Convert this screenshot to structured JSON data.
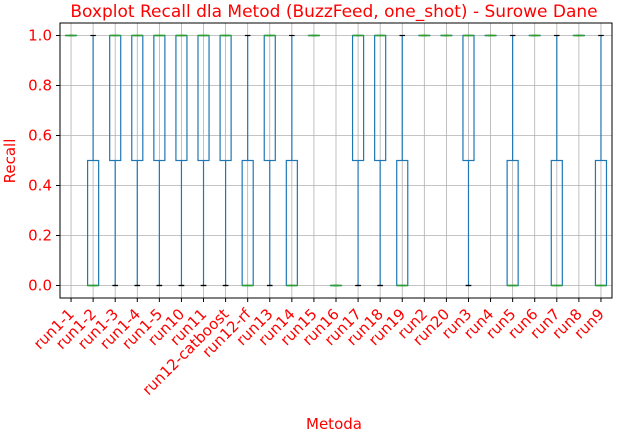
{
  "chart_data": {
    "type": "boxplot",
    "title": "Boxplot Recall dla Metod (BuzzFeed, one_shot) - Surowe Dane",
    "xlabel": "Metoda",
    "ylabel": "Recall",
    "ylim": [
      -0.05,
      1.05
    ],
    "yticks": [
      "0.0",
      "0.2",
      "0.4",
      "0.6",
      "0.8",
      "1.0"
    ],
    "grid": true,
    "colors": {
      "box": "#1f77b4",
      "median": "#2ca02c",
      "text": "#ff0000",
      "grid": "#b0b0b0",
      "axis": "#000000",
      "flier": "#000000"
    },
    "categories": [
      "run1-1",
      "run1-2",
      "run1-3",
      "run1-4",
      "run1-5",
      "run10",
      "run11",
      "run12-catboost",
      "run12-rf",
      "run13",
      "run14",
      "run15",
      "run16",
      "run17",
      "run18",
      "run19",
      "run2",
      "run20",
      "run3",
      "run4",
      "run5",
      "run6",
      "run7",
      "run8",
      "run9"
    ],
    "boxes": [
      {
        "q1": 1.0,
        "median": 1.0,
        "q3": 1.0,
        "whislo": 1.0,
        "whishi": 1.0,
        "fliers": []
      },
      {
        "q1": 0.0,
        "median": 0.0,
        "q3": 0.5,
        "whislo": 0.0,
        "whishi": 1.0,
        "fliers": []
      },
      {
        "q1": 0.5,
        "median": 1.0,
        "q3": 1.0,
        "whislo": 0.0,
        "whishi": 1.0,
        "fliers": [
          0.0
        ]
      },
      {
        "q1": 0.5,
        "median": 1.0,
        "q3": 1.0,
        "whislo": 0.0,
        "whishi": 1.0,
        "fliers": [
          0.0
        ]
      },
      {
        "q1": 0.5,
        "median": 1.0,
        "q3": 1.0,
        "whislo": 0.0,
        "whishi": 1.0,
        "fliers": [
          0.0
        ]
      },
      {
        "q1": 0.5,
        "median": 1.0,
        "q3": 1.0,
        "whislo": 0.0,
        "whishi": 1.0,
        "fliers": [
          0.0
        ]
      },
      {
        "q1": 0.5,
        "median": 1.0,
        "q3": 1.0,
        "whislo": 0.0,
        "whishi": 1.0,
        "fliers": [
          0.0
        ]
      },
      {
        "q1": 0.5,
        "median": 1.0,
        "q3": 1.0,
        "whislo": 0.0,
        "whishi": 1.0,
        "fliers": [
          0.0
        ]
      },
      {
        "q1": 0.0,
        "median": 0.0,
        "q3": 0.5,
        "whislo": 0.0,
        "whishi": 1.0,
        "fliers": []
      },
      {
        "q1": 0.5,
        "median": 1.0,
        "q3": 1.0,
        "whislo": 0.0,
        "whishi": 1.0,
        "fliers": [
          0.0
        ]
      },
      {
        "q1": 0.0,
        "median": 0.0,
        "q3": 0.5,
        "whislo": 0.0,
        "whishi": 1.0,
        "fliers": []
      },
      {
        "q1": 1.0,
        "median": 1.0,
        "q3": 1.0,
        "whislo": 1.0,
        "whishi": 1.0,
        "fliers": []
      },
      {
        "q1": 0.0,
        "median": 0.0,
        "q3": 0.0,
        "whislo": 0.0,
        "whishi": 0.0,
        "fliers": []
      },
      {
        "q1": 0.5,
        "median": 1.0,
        "q3": 1.0,
        "whislo": 0.0,
        "whishi": 1.0,
        "fliers": [
          0.0
        ]
      },
      {
        "q1": 0.5,
        "median": 1.0,
        "q3": 1.0,
        "whislo": 0.0,
        "whishi": 1.0,
        "fliers": [
          0.0
        ]
      },
      {
        "q1": 0.0,
        "median": 0.0,
        "q3": 0.5,
        "whislo": 0.0,
        "whishi": 1.0,
        "fliers": []
      },
      {
        "q1": 1.0,
        "median": 1.0,
        "q3": 1.0,
        "whislo": 1.0,
        "whishi": 1.0,
        "fliers": []
      },
      {
        "q1": 1.0,
        "median": 1.0,
        "q3": 1.0,
        "whislo": 1.0,
        "whishi": 1.0,
        "fliers": []
      },
      {
        "q1": 0.5,
        "median": 1.0,
        "q3": 1.0,
        "whislo": 0.0,
        "whishi": 1.0,
        "fliers": [
          0.0
        ]
      },
      {
        "q1": 1.0,
        "median": 1.0,
        "q3": 1.0,
        "whislo": 1.0,
        "whishi": 1.0,
        "fliers": []
      },
      {
        "q1": 0.0,
        "median": 0.0,
        "q3": 0.5,
        "whislo": 0.0,
        "whishi": 1.0,
        "fliers": []
      },
      {
        "q1": 1.0,
        "median": 1.0,
        "q3": 1.0,
        "whislo": 1.0,
        "whishi": 1.0,
        "fliers": []
      },
      {
        "q1": 0.0,
        "median": 0.0,
        "q3": 0.5,
        "whislo": 0.0,
        "whishi": 1.0,
        "fliers": []
      },
      {
        "q1": 1.0,
        "median": 1.0,
        "q3": 1.0,
        "whislo": 1.0,
        "whishi": 1.0,
        "fliers": []
      },
      {
        "q1": 0.0,
        "median": 0.0,
        "q3": 0.5,
        "whislo": 0.0,
        "whishi": 1.0,
        "fliers": []
      }
    ]
  }
}
